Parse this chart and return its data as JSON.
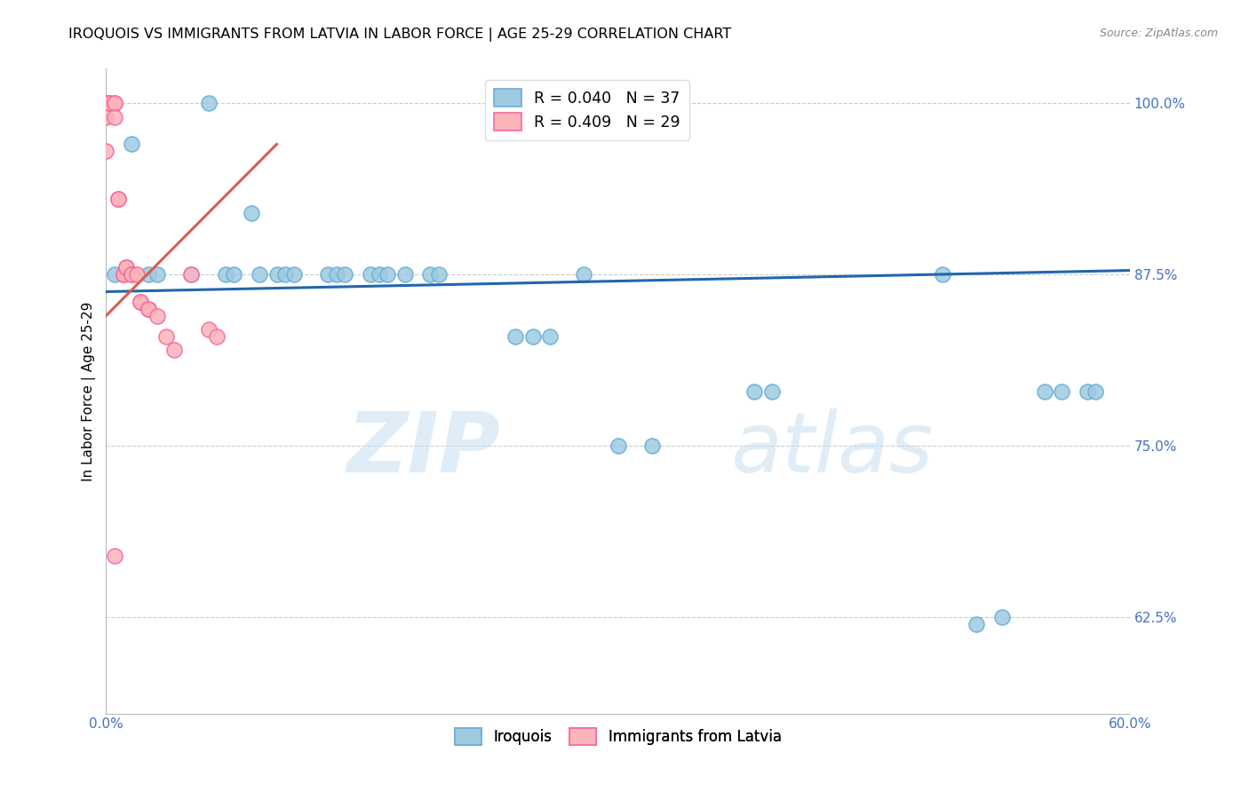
{
  "title": "IROQUOIS VS IMMIGRANTS FROM LATVIA IN LABOR FORCE | AGE 25-29 CORRELATION CHART",
  "source": "Source: ZipAtlas.com",
  "ylabel": "In Labor Force | Age 25-29",
  "xmin": 0.0,
  "xmax": 0.6,
  "ymin": 0.555,
  "ymax": 1.025,
  "xticks": [
    0.0,
    0.1,
    0.2,
    0.3,
    0.4,
    0.5,
    0.6
  ],
  "xtick_labels": [
    "0.0%",
    "",
    "",
    "",
    "",
    "",
    "60.0%"
  ],
  "ytick_labels": [
    "62.5%",
    "75.0%",
    "87.5%",
    "100.0%"
  ],
  "yticks": [
    0.625,
    0.75,
    0.875,
    1.0
  ],
  "legend_blue_label": "R = 0.040   N = 37",
  "legend_pink_label": "R = 0.409   N = 29",
  "legend_bottom_iroquois": "Iroquois",
  "legend_bottom_latvia": "Immigrants from Latvia",
  "blue_color": "#9ecae1",
  "pink_color": "#fbb4b9",
  "blue_edge_color": "#6baed6",
  "pink_edge_color": "#f768a1",
  "trend_blue_color": "#2166ac",
  "trend_pink_color": "#d6604d",
  "watermark_zip": "ZIP",
  "watermark_atlas": "atlas",
  "grid_color": "#cccccc",
  "background_color": "#ffffff",
  "title_fontsize": 11.5,
  "axis_color": "#4472c4",
  "blue_dots_x": [
    0.005,
    0.015,
    0.025,
    0.03,
    0.05,
    0.06,
    0.07,
    0.075,
    0.085,
    0.09,
    0.1,
    0.105,
    0.11,
    0.13,
    0.135,
    0.14,
    0.155,
    0.16,
    0.165,
    0.175,
    0.19,
    0.195,
    0.24,
    0.25,
    0.26,
    0.28,
    0.3,
    0.32,
    0.38,
    0.39,
    0.49,
    0.51,
    0.525,
    0.55,
    0.56,
    0.575,
    0.58
  ],
  "blue_dots_y": [
    0.875,
    0.97,
    0.875,
    0.875,
    0.875,
    1.0,
    0.875,
    0.875,
    0.92,
    0.875,
    0.875,
    0.875,
    0.875,
    0.875,
    0.875,
    0.875,
    0.875,
    0.875,
    0.875,
    0.875,
    0.875,
    0.875,
    0.83,
    0.83,
    0.83,
    0.875,
    0.75,
    0.75,
    0.79,
    0.79,
    0.875,
    0.62,
    0.625,
    0.79,
    0.79,
    0.79,
    0.79
  ],
  "pink_dots_x": [
    0.0,
    0.0,
    0.0,
    0.0,
    0.002,
    0.002,
    0.005,
    0.005,
    0.005,
    0.007,
    0.007,
    0.01,
    0.01,
    0.012,
    0.012,
    0.015,
    0.015,
    0.018,
    0.02,
    0.02,
    0.025,
    0.025,
    0.03,
    0.035,
    0.04,
    0.05,
    0.06,
    0.065,
    0.005
  ],
  "pink_dots_y": [
    1.0,
    1.0,
    0.99,
    0.965,
    1.0,
    1.0,
    1.0,
    1.0,
    0.99,
    0.93,
    0.93,
    0.875,
    0.875,
    0.88,
    0.88,
    0.875,
    0.875,
    0.875,
    0.855,
    0.855,
    0.85,
    0.85,
    0.845,
    0.83,
    0.82,
    0.875,
    0.835,
    0.83,
    0.67
  ],
  "blue_trend_x": [
    0.0,
    0.6
  ],
  "blue_trend_y": [
    0.8625,
    0.878
  ],
  "pink_trend_x": [
    0.0,
    0.1
  ],
  "pink_trend_y": [
    0.845,
    0.97
  ]
}
